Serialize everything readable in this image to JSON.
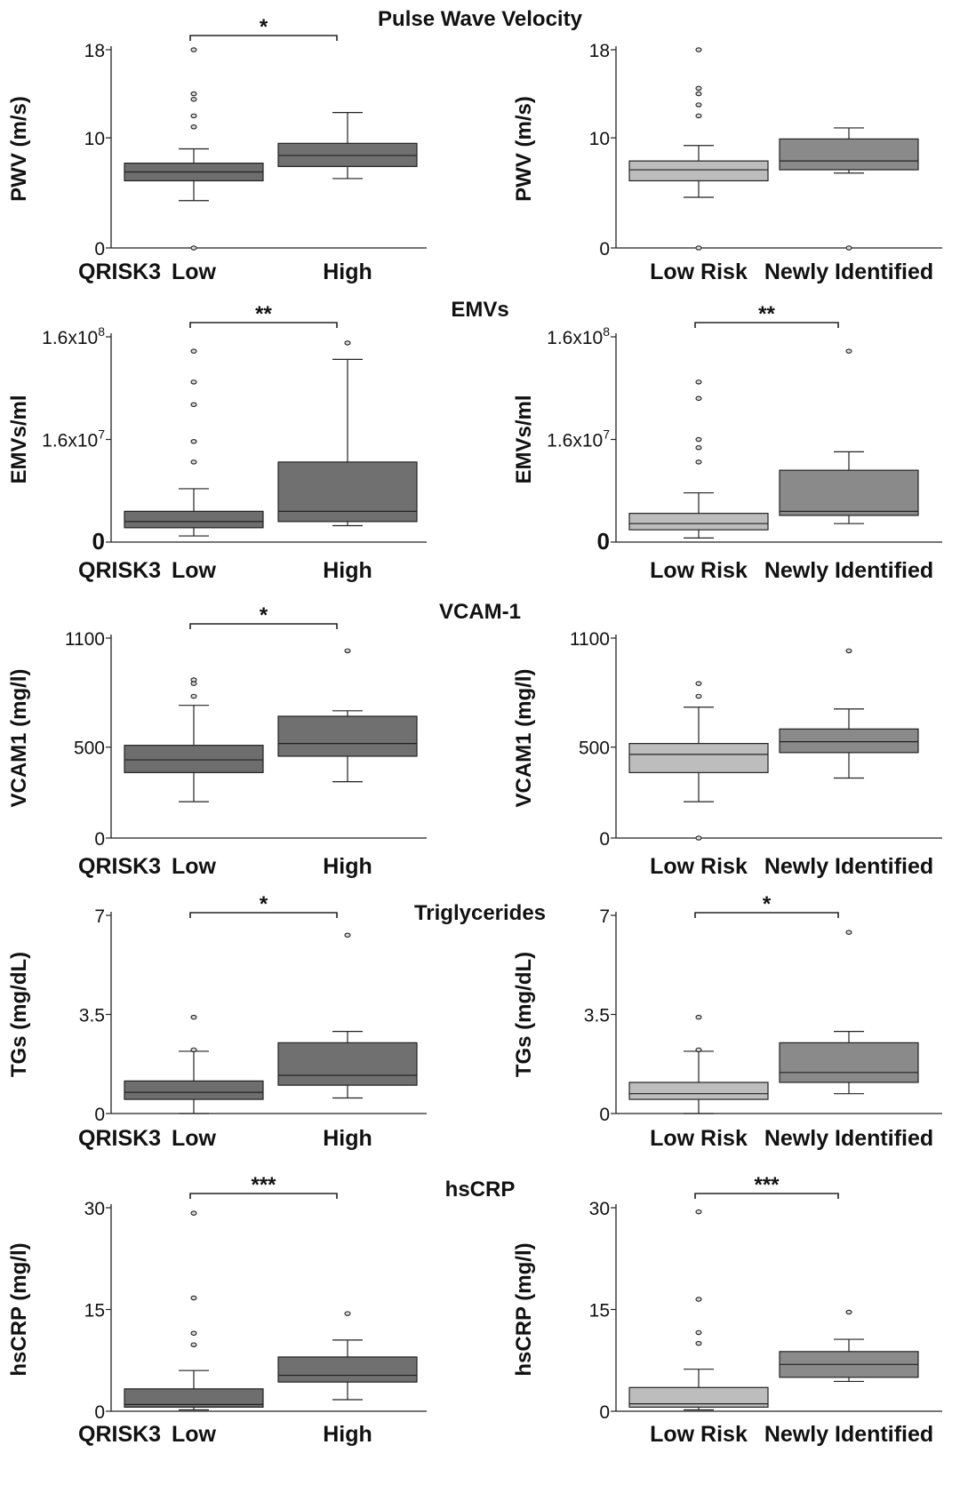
{
  "colors": {
    "group1_left": "#6e6e6e",
    "group1_right": "#bdbdbd",
    "group2": "#8a8a8a",
    "group2_left": "#707070",
    "line": "#222222"
  },
  "chart_data": [
    {
      "type": "box",
      "section_title": "Pulse Wave Velocity",
      "ylabel": "PWV (m/s)",
      "ylim": [
        0,
        18
      ],
      "yticks": [
        "0",
        "10",
        "18"
      ],
      "ytick_values": [
        0,
        10,
        18
      ],
      "group_prefix": "QRISK3",
      "categories": [
        "Low",
        "High"
      ],
      "boxes": [
        {
          "q1": 6.1,
          "median": 6.9,
          "q3": 7.7,
          "whisker_low": 4.3,
          "whisker_high": 9.0,
          "outliers": [
            0,
            11.0,
            12.0,
            13.5,
            14.0,
            18.0
          ]
        },
        {
          "q1": 7.4,
          "median": 8.4,
          "q3": 9.5,
          "whisker_low": 6.3,
          "whisker_high": 12.3,
          "outliers": []
        }
      ],
      "significance": "*"
    },
    {
      "type": "box",
      "ylabel": "PWV (m/s)",
      "ylim": [
        0,
        18
      ],
      "yticks": [
        "0",
        "10",
        "18"
      ],
      "ytick_values": [
        0,
        10,
        18
      ],
      "categories": [
        "Low Risk",
        "Newly Identified"
      ],
      "boxes": [
        {
          "q1": 6.1,
          "median": 7.1,
          "q3": 7.9,
          "whisker_low": 4.6,
          "whisker_high": 9.3,
          "outliers": [
            0,
            12.0,
            13.0,
            14.0,
            14.5,
            18.0
          ]
        },
        {
          "q1": 7.1,
          "median": 7.9,
          "q3": 9.9,
          "whisker_low": 6.8,
          "whisker_high": 10.9,
          "outliers": [
            0
          ]
        }
      ],
      "significance": ""
    },
    {
      "type": "box",
      "section_title": "EMVs",
      "ylabel": "EMVs/ml",
      "ylim_display": [
        0,
        10
      ],
      "yticks": [
        "0",
        "1.6x10",
        "1.6x10"
      ],
      "ytick_sup": [
        "",
        "7",
        "8"
      ],
      "ytick_values": [
        0,
        5,
        10
      ],
      "group_prefix": "QRISK3",
      "categories": [
        "Low",
        "High"
      ],
      "boxes": [
        {
          "q1": 0.7,
          "median": 1.0,
          "q3": 1.5,
          "whisker_low": 0.3,
          "whisker_high": 2.6,
          "outliers": [
            3.9,
            4.9,
            6.7,
            7.8,
            9.3
          ]
        },
        {
          "q1": 1.0,
          "median": 1.5,
          "q3": 3.9,
          "whisker_low": 0.8,
          "whisker_high": 8.9,
          "outliers": [
            9.7
          ]
        }
      ],
      "significance": "**"
    },
    {
      "type": "box",
      "ylabel": "EMVs/ml",
      "ylim_display": [
        0,
        10
      ],
      "yticks": [
        "0",
        "1.6x10",
        "1.6x10"
      ],
      "ytick_sup": [
        "",
        "7",
        "8"
      ],
      "ytick_values": [
        0,
        5,
        10
      ],
      "categories": [
        "Low Risk",
        "Newly Identified"
      ],
      "boxes": [
        {
          "q1": 0.6,
          "median": 0.9,
          "q3": 1.4,
          "whisker_low": 0.2,
          "whisker_high": 2.4,
          "outliers": [
            3.9,
            4.6,
            5.0,
            7.0,
            7.8
          ]
        },
        {
          "q1": 1.3,
          "median": 1.5,
          "q3": 3.5,
          "whisker_low": 0.9,
          "whisker_high": 4.4,
          "outliers": [
            9.3
          ]
        }
      ],
      "significance": "**"
    },
    {
      "type": "box",
      "section_title": "VCAM-1",
      "ylabel": "VCAM1 (mg/l)",
      "ylim": [
        0,
        1100
      ],
      "yticks": [
        "0",
        "500",
        "1100"
      ],
      "ytick_values": [
        0,
        500,
        1100
      ],
      "group_prefix": "QRISK3",
      "categories": [
        "Low",
        "High"
      ],
      "boxes": [
        {
          "q1": 360,
          "median": 430,
          "q3": 510,
          "whisker_low": 200,
          "whisker_high": 730,
          "outliers": [
            780,
            850,
            870
          ]
        },
        {
          "q1": 450,
          "median": 520,
          "q3": 670,
          "whisker_low": 310,
          "whisker_high": 700,
          "outliers": [
            1030
          ]
        }
      ],
      "significance": "*"
    },
    {
      "type": "box",
      "ylabel": "VCAM1 (mg/l)",
      "ylim": [
        0,
        1100
      ],
      "yticks": [
        "0",
        "500",
        "1100"
      ],
      "ytick_values": [
        0,
        500,
        1100
      ],
      "categories": [
        "Low Risk",
        "Newly Identified"
      ],
      "boxes": [
        {
          "q1": 360,
          "median": 460,
          "q3": 520,
          "whisker_low": 200,
          "whisker_high": 720,
          "outliers": [
            0,
            780,
            850
          ]
        },
        {
          "q1": 470,
          "median": 530,
          "q3": 600,
          "whisker_low": 330,
          "whisker_high": 710,
          "outliers": [
            1030
          ]
        }
      ],
      "significance": ""
    },
    {
      "type": "box",
      "section_title": "Triglycerides",
      "ylabel": "TGs (mg/dL)",
      "ylim": [
        0,
        7
      ],
      "yticks": [
        "0",
        "3.5",
        "7"
      ],
      "ytick_values": [
        0,
        3.5,
        7
      ],
      "group_prefix": "QRISK3",
      "categories": [
        "Low",
        "High"
      ],
      "boxes": [
        {
          "q1": 0.5,
          "median": 0.75,
          "q3": 1.15,
          "whisker_low": 0,
          "whisker_high": 2.2,
          "outliers": [
            2.25,
            3.4
          ]
        },
        {
          "q1": 1.0,
          "median": 1.35,
          "q3": 2.5,
          "whisker_low": 0.55,
          "whisker_high": 2.9,
          "outliers": [
            6.3
          ]
        }
      ],
      "significance": "*"
    },
    {
      "type": "box",
      "ylabel": "TGs (mg/dL)",
      "ylim": [
        0,
        7
      ],
      "yticks": [
        "0",
        "3.5",
        "7"
      ],
      "ytick_values": [
        0,
        3.5,
        7
      ],
      "categories": [
        "Low Risk",
        "Newly Identified"
      ],
      "boxes": [
        {
          "q1": 0.5,
          "median": 0.7,
          "q3": 1.1,
          "whisker_low": 0,
          "whisker_high": 2.2,
          "outliers": [
            2.25,
            3.4
          ]
        },
        {
          "q1": 1.1,
          "median": 1.45,
          "q3": 2.5,
          "whisker_low": 0.7,
          "whisker_high": 2.9,
          "outliers": [
            6.4
          ]
        }
      ],
      "significance": "*"
    },
    {
      "type": "box",
      "section_title": "hsCRP",
      "ylabel": "hsCRP (mg/l)",
      "ylim": [
        0,
        30
      ],
      "yticks": [
        "0",
        "15",
        "30"
      ],
      "ytick_values": [
        0,
        15,
        30
      ],
      "group_prefix": "QRISK3",
      "categories": [
        "Low",
        "High"
      ],
      "boxes": [
        {
          "q1": 0.6,
          "median": 1.0,
          "q3": 3.3,
          "whisker_low": 0.2,
          "whisker_high": 6.0,
          "outliers": [
            9.8,
            11.5,
            16.7,
            29.2
          ]
        },
        {
          "q1": 4.3,
          "median": 5.3,
          "q3": 8.0,
          "whisker_low": 1.7,
          "whisker_high": 10.5,
          "outliers": [
            14.4
          ]
        }
      ],
      "significance": "***"
    },
    {
      "type": "box",
      "ylabel": "hsCRP (mg/l)",
      "ylim": [
        0,
        30
      ],
      "yticks": [
        "0",
        "15",
        "30"
      ],
      "ytick_values": [
        0,
        15,
        30
      ],
      "categories": [
        "Low Risk",
        "Newly Identified"
      ],
      "boxes": [
        {
          "q1": 0.6,
          "median": 1.1,
          "q3": 3.5,
          "whisker_low": 0.2,
          "whisker_high": 6.2,
          "outliers": [
            10.0,
            11.6,
            16.5,
            29.4
          ]
        },
        {
          "q1": 5.0,
          "median": 6.9,
          "q3": 8.8,
          "whisker_low": 4.4,
          "whisker_high": 10.6,
          "outliers": [
            14.6
          ]
        }
      ],
      "significance": "***"
    }
  ]
}
